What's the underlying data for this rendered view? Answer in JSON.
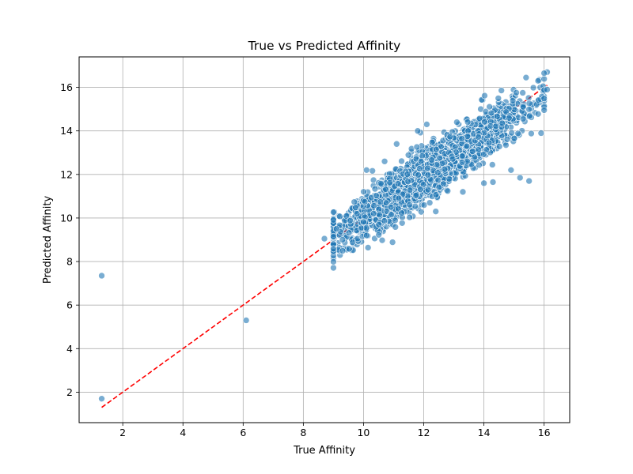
{
  "chart_data": {
    "type": "scatter",
    "title": "True vs Predicted Affinity",
    "xlabel": "True Affinity",
    "ylabel": "Predicted Affinity",
    "xlim": [
      0.55,
      16.85
    ],
    "ylim": [
      0.6,
      17.4
    ],
    "xticks": [
      2,
      4,
      6,
      8,
      10,
      12,
      14,
      16
    ],
    "yticks": [
      2,
      4,
      6,
      8,
      10,
      12,
      14,
      16
    ],
    "grid": true,
    "point_color": "#1f77b4",
    "reference_line": {
      "x": [
        1.3,
        16.1
      ],
      "y": [
        1.3,
        16.1
      ],
      "color": "#ff0000",
      "style": "dashed"
    },
    "outliers": [
      {
        "x": 1.3,
        "y": 7.35
      },
      {
        "x": 1.3,
        "y": 1.7
      },
      {
        "x": 6.1,
        "y": 5.3
      },
      {
        "x": 16.1,
        "y": 16.7
      },
      {
        "x": 16.0,
        "y": 16.65
      },
      {
        "x": 15.8,
        "y": 16.3
      },
      {
        "x": 15.4,
        "y": 16.45
      },
      {
        "x": 16.1,
        "y": 15.9
      },
      {
        "x": 15.5,
        "y": 11.7
      },
      {
        "x": 15.2,
        "y": 11.85
      },
      {
        "x": 14.0,
        "y": 11.6
      },
      {
        "x": 14.3,
        "y": 11.65
      },
      {
        "x": 13.3,
        "y": 11.2
      },
      {
        "x": 12.4,
        "y": 10.3
      },
      {
        "x": 12.2,
        "y": 10.7
      },
      {
        "x": 11.8,
        "y": 14.0
      },
      {
        "x": 12.1,
        "y": 14.3
      },
      {
        "x": 13.1,
        "y": 14.4
      },
      {
        "x": 14.9,
        "y": 12.2
      },
      {
        "x": 15.9,
        "y": 13.9
      },
      {
        "x": 10.1,
        "y": 12.2
      },
      {
        "x": 10.1,
        "y": 9.2
      },
      {
        "x": 8.7,
        "y": 9.05
      },
      {
        "x": 9.1,
        "y": 9.5
      },
      {
        "x": 9.3,
        "y": 9.0
      },
      {
        "x": 10.7,
        "y": 12.6
      },
      {
        "x": 11.1,
        "y": 13.4
      }
    ],
    "cluster": {
      "count": 2200,
      "x_min": 9.0,
      "x_max": 16.0,
      "slope": 0.94,
      "intercept": 0.65,
      "spread": 0.55
    }
  }
}
